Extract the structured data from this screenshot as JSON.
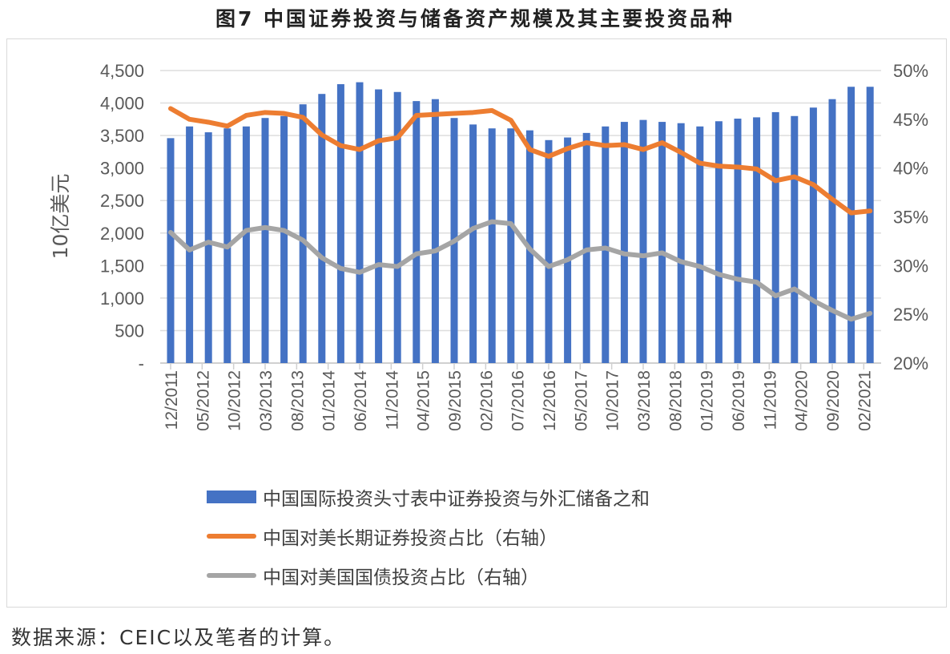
{
  "title": "图7  中国证券投资与储备资产规模及其主要投资品种",
  "footer": "数据来源：CEIC以及笔者的计算。",
  "chart_data": {
    "type": "bar+line",
    "title": "图7  中国证券投资与储备资产规模及其主要投资品种",
    "ylabel": "10亿美元",
    "ylim": [
      0,
      4500
    ],
    "y2lim": [
      20,
      50
    ],
    "yticks": [
      "-",
      "500",
      "1,000",
      "1,500",
      "2,000",
      "2,500",
      "3,000",
      "3,500",
      "4,000",
      "4,500"
    ],
    "y2ticks": [
      "20%",
      "25%",
      "30%",
      "35%",
      "40%",
      "45%",
      "50%"
    ],
    "xtick_labels": [
      "12/2011",
      "05/2012",
      "10/2012",
      "03/2013",
      "08/2013",
      "01/2014",
      "06/2014",
      "11/2014",
      "04/2015",
      "09/2015",
      "02/2016",
      "07/2016",
      "12/2016",
      "05/2017",
      "10/2017",
      "03/2018",
      "08/2018",
      "01/2019",
      "06/2019",
      "11/2019",
      "04/2020",
      "09/2020",
      "02/2021"
    ],
    "grid": true,
    "legend_position": "bottom",
    "colors": {
      "bar": "#4472c4",
      "orange": "#ed7d31",
      "gray": "#a5a5a5"
    },
    "series": [
      {
        "name": "中国国际投资头寸表中证券投资与外汇储备之和",
        "type": "bar",
        "axis": "left",
        "values": [
          3460,
          3640,
          3550,
          3610,
          3640,
          3770,
          3800,
          3980,
          4140,
          4290,
          4320,
          4210,
          4170,
          4030,
          4060,
          3770,
          3670,
          3610,
          3610,
          3580,
          3430,
          3470,
          3540,
          3640,
          3710,
          3740,
          3710,
          3690,
          3640,
          3720,
          3760,
          3780,
          3860,
          3800,
          3930,
          4060,
          4250,
          4250
        ]
      },
      {
        "name": "中国对美长期证券投资占比（右轴）",
        "type": "line",
        "axis": "right",
        "values": [
          46.1,
          45.0,
          44.7,
          44.3,
          45.4,
          45.7,
          45.6,
          45.2,
          43.4,
          42.3,
          41.9,
          42.8,
          43.1,
          45.4,
          45.5,
          45.6,
          45.7,
          45.9,
          44.9,
          41.9,
          41.2,
          42.0,
          42.6,
          42.3,
          42.4,
          41.9,
          42.6,
          41.6,
          40.5,
          40.2,
          40.1,
          39.9,
          38.7,
          39.1,
          38.3,
          36.8,
          35.4,
          35.6
        ]
      },
      {
        "name": "中国对美国国债投资占比（右轴）",
        "type": "line",
        "axis": "right",
        "values": [
          33.4,
          31.6,
          32.4,
          31.9,
          33.6,
          33.9,
          33.6,
          32.6,
          30.8,
          29.7,
          29.3,
          30.1,
          29.9,
          31.2,
          31.5,
          32.5,
          33.8,
          34.5,
          34.3,
          31.7,
          29.9,
          30.6,
          31.6,
          31.8,
          31.2,
          31.0,
          31.3,
          30.4,
          29.9,
          29.1,
          28.6,
          28.3,
          26.9,
          27.6,
          26.4,
          25.4,
          24.5,
          25.1
        ]
      }
    ]
  }
}
